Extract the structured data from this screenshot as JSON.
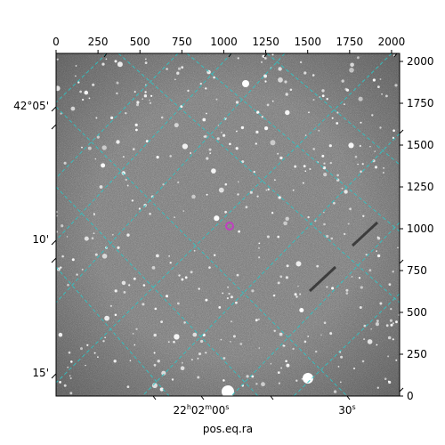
{
  "figure": {
    "top_axis_ticks": [
      "0",
      "250",
      "500",
      "750",
      "1000",
      "1250",
      "1500",
      "1750",
      "2000"
    ],
    "right_axis_ticks": [
      "0",
      "250",
      "500",
      "750",
      "1000",
      "1250",
      "1500",
      "1750",
      "2000"
    ],
    "left_axis_ticks": [
      "42°05'",
      "10'",
      "15'"
    ],
    "bottom_axis_ticks": {
      "h": "22",
      "hs": "h",
      "m": "02",
      "ms": "m",
      "s": "00",
      "ss": "s",
      "s2": "30",
      "s2s": "s"
    },
    "xlabel": "pos.eq.ra",
    "colors": {
      "grid": "#2ec4c4",
      "marker": "#c040c0",
      "background_gray": "#6e6e6e",
      "axes": "#000000"
    }
  }
}
